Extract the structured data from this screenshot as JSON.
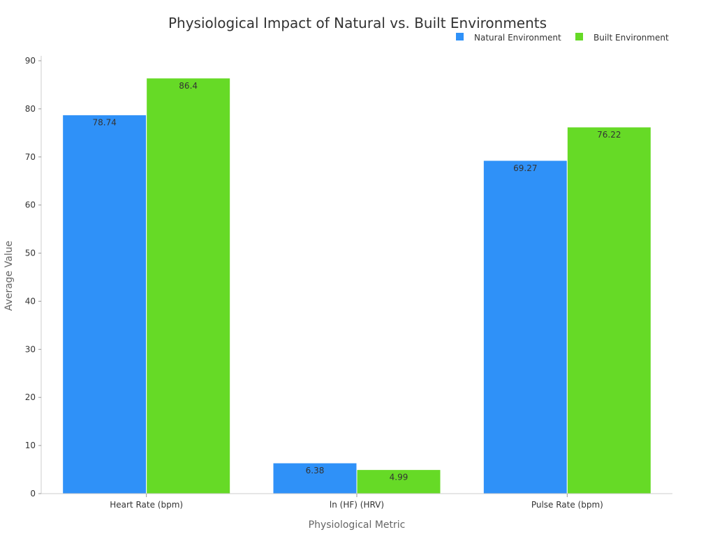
{
  "chart_data": {
    "type": "bar",
    "title": "Physiological Impact of Natural vs. Built Environments",
    "xlabel": "Physiological Metric",
    "ylabel": "Average Value",
    "categories": [
      "Heart Rate (bpm)",
      "ln (HF) (HRV)",
      "Pulse Rate (bpm)"
    ],
    "series": [
      {
        "name": "Natural Environment",
        "color": "#2f91f8",
        "values": [
          78.74,
          6.38,
          69.27
        ]
      },
      {
        "name": "Built Environment",
        "color": "#66da26",
        "values": [
          86.4,
          4.99,
          76.22
        ]
      }
    ],
    "ylim": [
      0,
      90
    ],
    "yticks": [
      0,
      10,
      20,
      30,
      40,
      50,
      60,
      70,
      80,
      90
    ],
    "grid": false,
    "legend_position": "top-right",
    "data_labels": true
  }
}
